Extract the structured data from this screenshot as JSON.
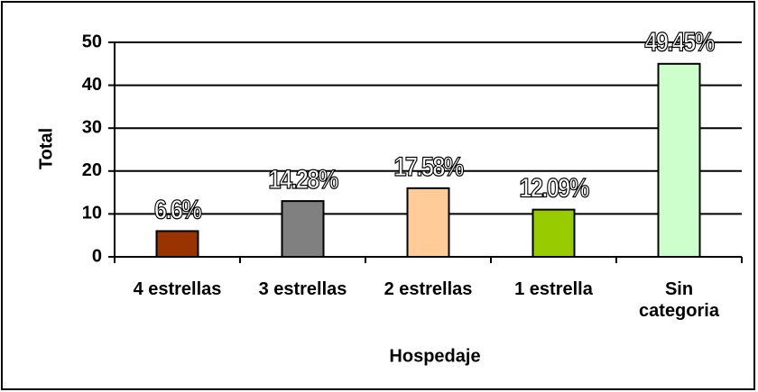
{
  "chart_data": {
    "type": "bar",
    "x_label": "Hospedaje",
    "y_label": "Total",
    "categories": [
      "4 estrellas",
      "3 estrellas",
      "2 estrellas",
      "1 estrella",
      "Sin categoria"
    ],
    "values": [
      6,
      13,
      16,
      11,
      45
    ],
    "colors": [
      "#993300",
      "#808080",
      "#ffcc99",
      "#99cc00",
      "#ccffcc"
    ],
    "annotations": [
      "6.6%",
      "14.28%",
      "17.58%",
      "12.09%",
      "49.45%"
    ],
    "ylim": [
      0,
      50
    ],
    "yticks": [
      0,
      10,
      20,
      30,
      40,
      50
    ],
    "grid": true
  }
}
